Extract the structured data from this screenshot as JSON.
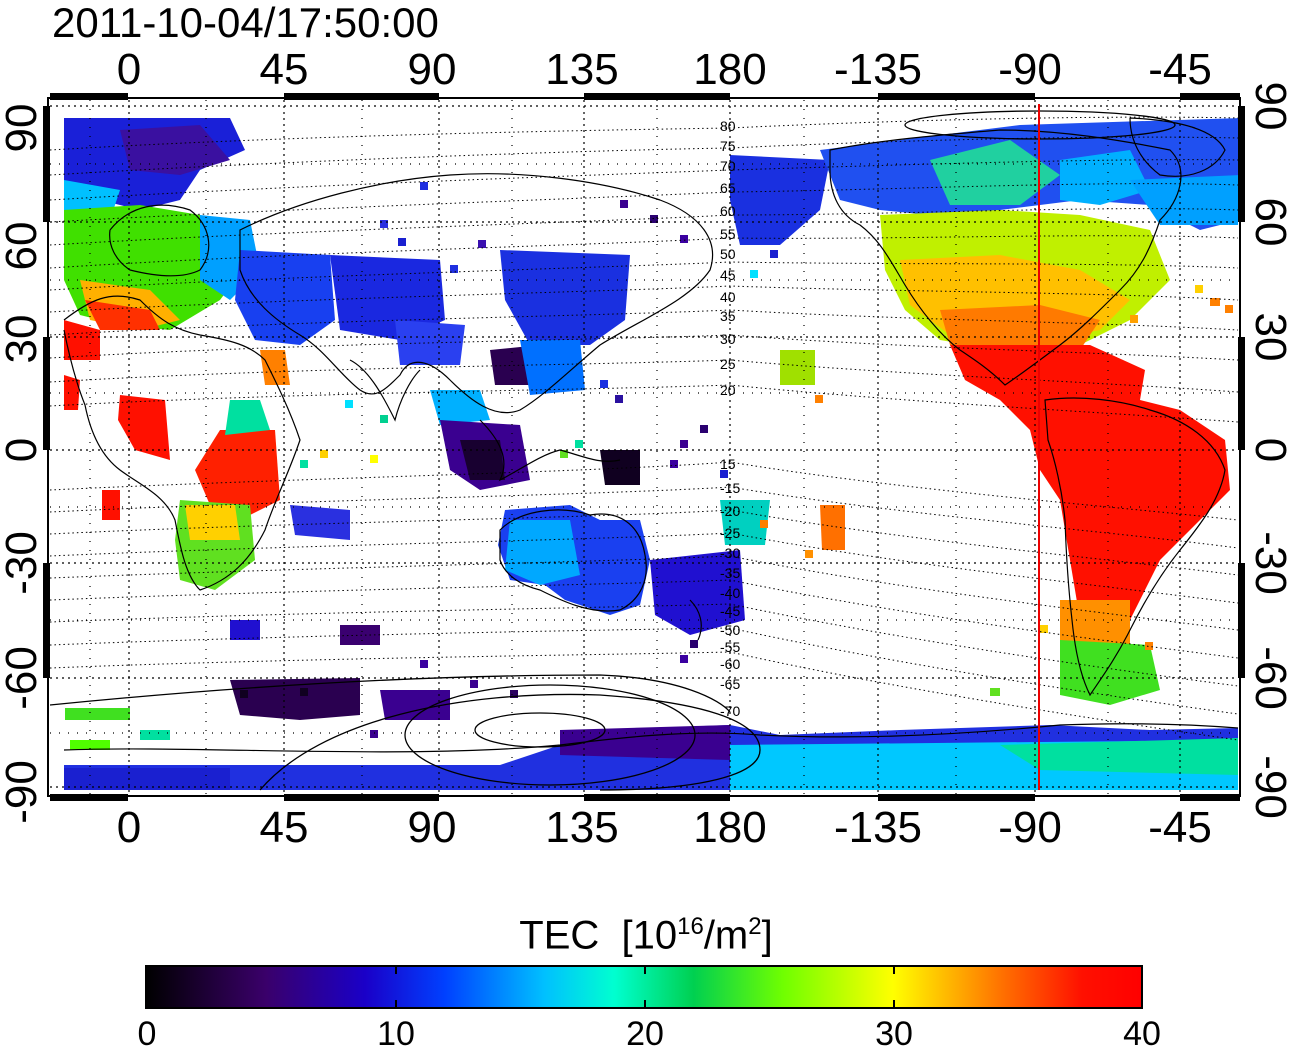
{
  "title": "2011-10-04/17:50:00",
  "x_ticks": [
    "0",
    "45",
    "90",
    "135",
    "180",
    "-135",
    "-90",
    "-45"
  ],
  "y_ticks": [
    "90",
    "60",
    "30",
    "0",
    "-30",
    "-60",
    "-90"
  ],
  "contour_labels": [
    "80",
    "75",
    "70",
    "65",
    "60",
    "55",
    "50",
    "45",
    "40",
    "35",
    "30",
    "25",
    "20",
    "15",
    "-15",
    "-20",
    "-25",
    "-30",
    "-35",
    "-40",
    "-45",
    "-50",
    "-55",
    "-60",
    "-65",
    "-70",
    "-75"
  ],
  "colorbar": {
    "title": "TEC",
    "unit_prefix": "[10",
    "unit_exp": "16",
    "unit_mid": "/m",
    "unit_exp2": "2",
    "unit_suffix": "]",
    "ticks": [
      "0",
      "10",
      "20",
      "30",
      "40"
    ],
    "range": [
      0,
      40
    ]
  },
  "terminator_longitude": -92,
  "colors": {
    "terminator": "#ee0000",
    "scale": [
      "#000000",
      "#3a006a",
      "#1a00c8",
      "#0050ff",
      "#00e0ff",
      "#00d060",
      "#50ff00",
      "#ffff00",
      "#ff8000",
      "#ff0000"
    ]
  }
}
